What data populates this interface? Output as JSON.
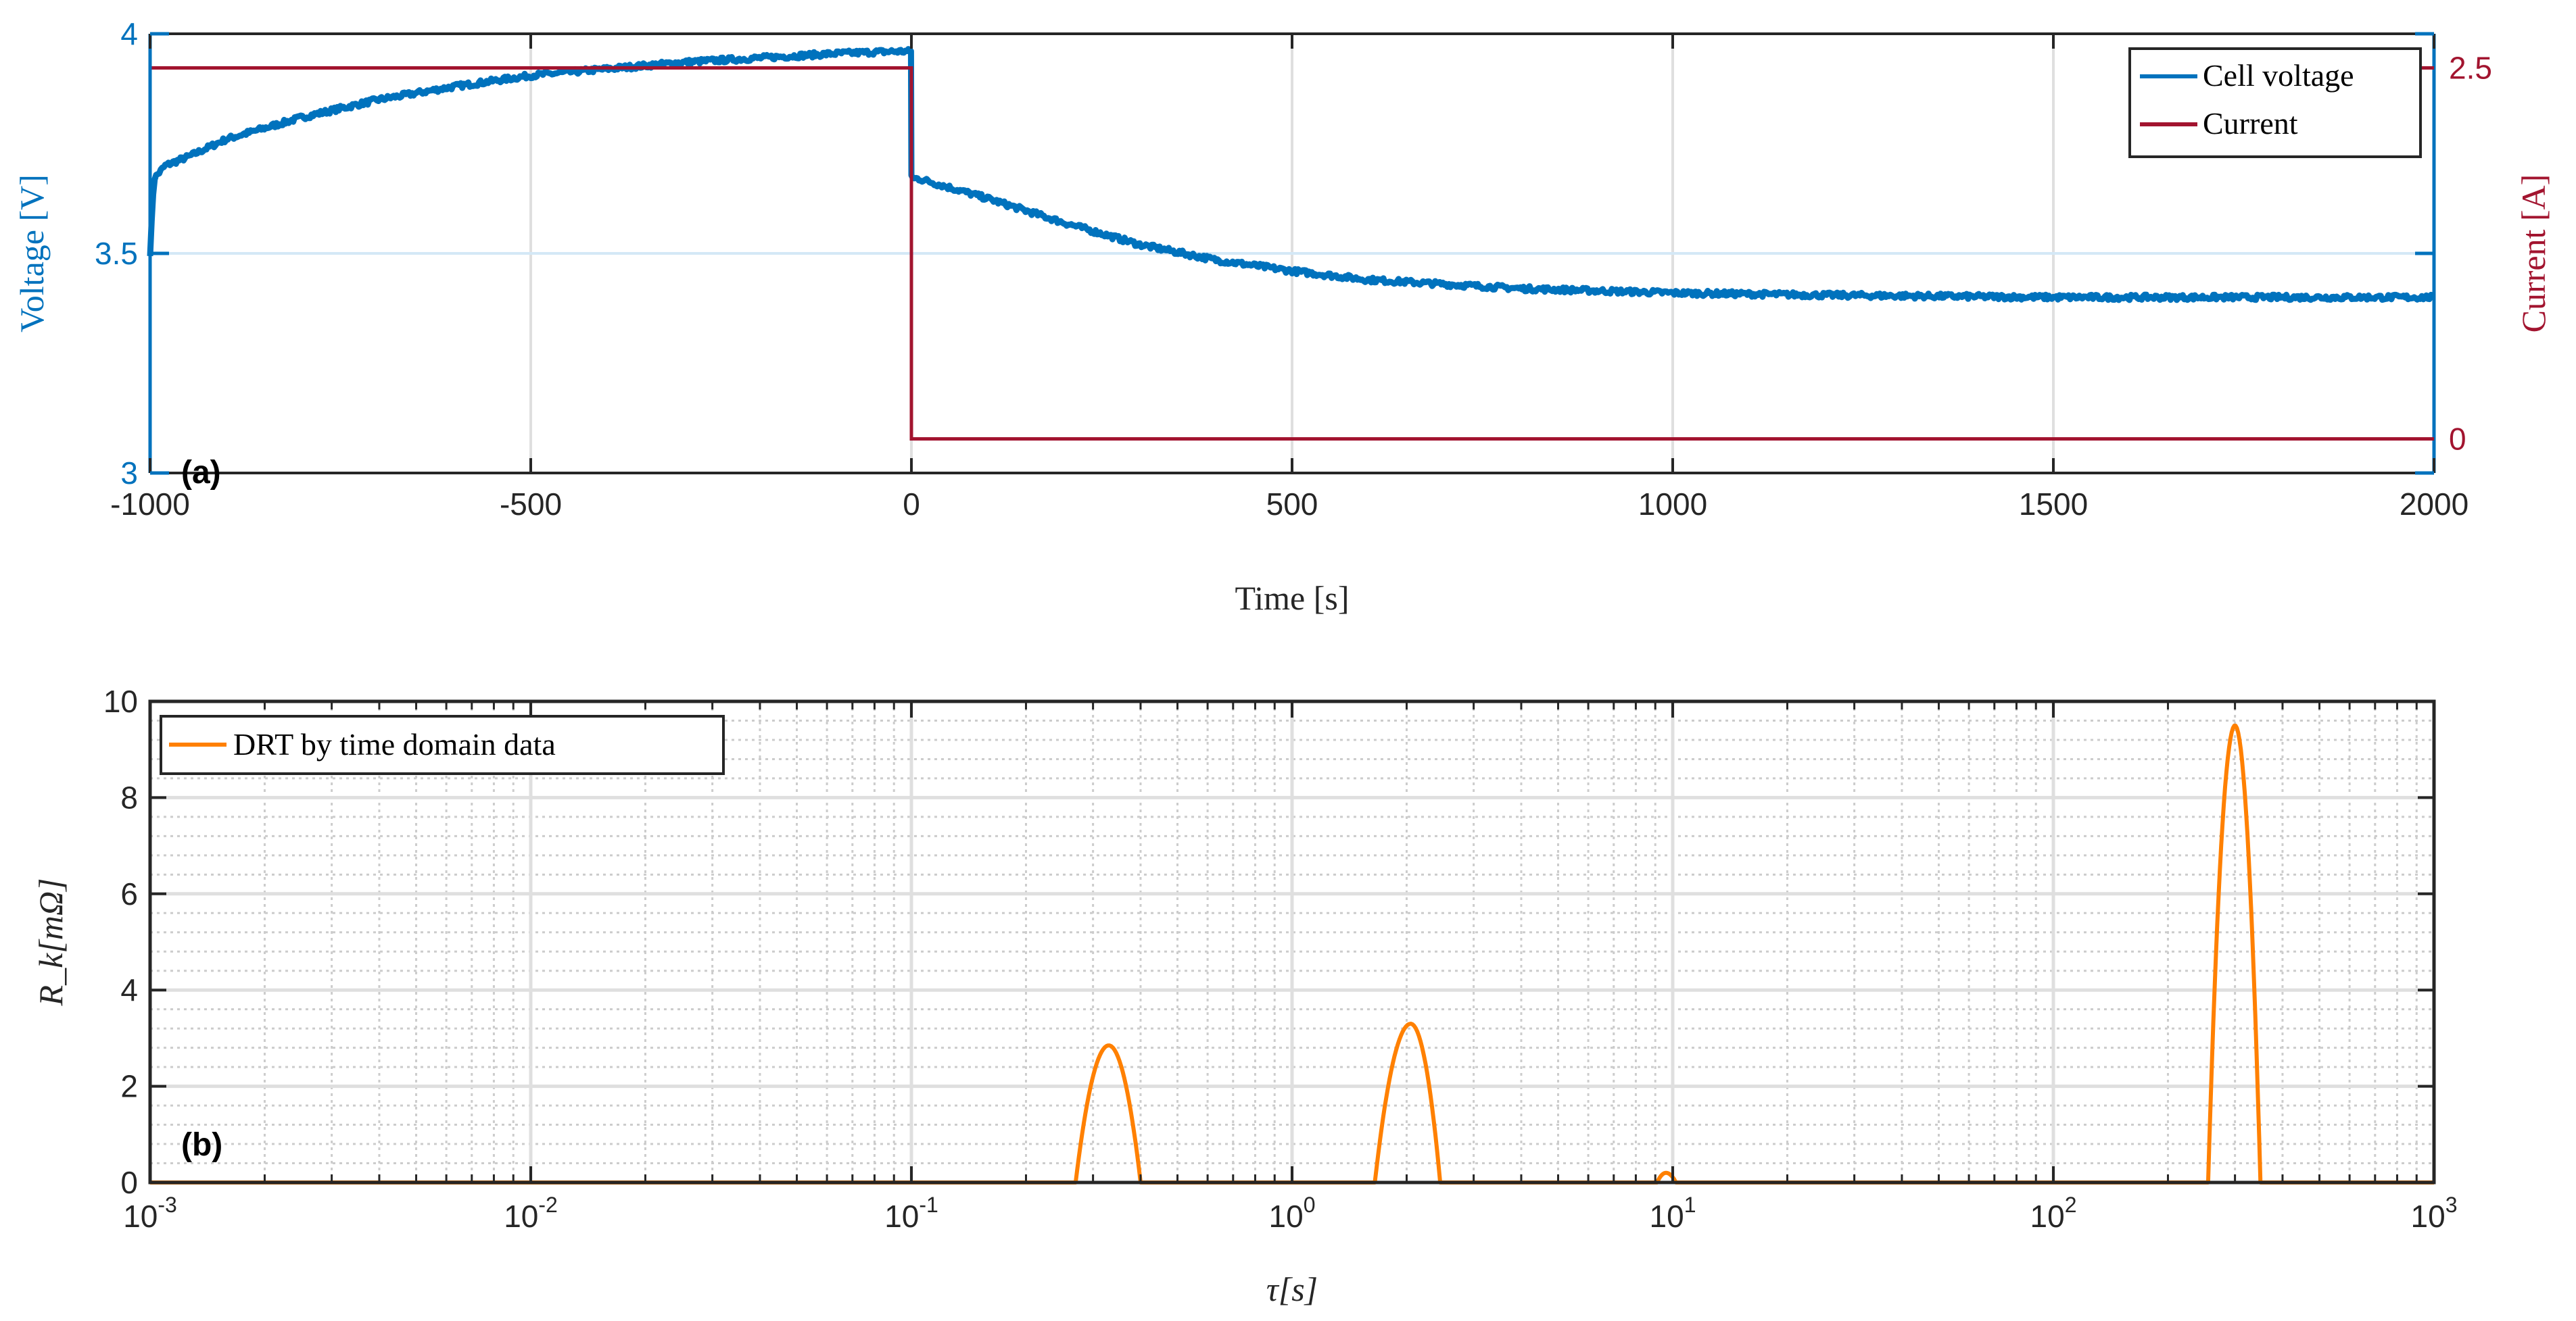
{
  "chart_data": [
    {
      "panel": "a",
      "panel_label": "(a)",
      "type": "line",
      "xlabel": "Time [s]",
      "ylabel_left": "Voltage [V]",
      "ylabel_right": "Current [A]",
      "xlim": [
        -1000,
        2000
      ],
      "ylim_left": [
        3,
        4
      ],
      "ylim_right": [
        -0.23,
        2.73
      ],
      "xticks": [
        -1000,
        -500,
        0,
        500,
        1000,
        1500,
        2000
      ],
      "xtick_labels": [
        "-1000",
        "-500",
        "0",
        "500",
        "1000",
        "1500",
        "2000"
      ],
      "yticks_left": [
        3,
        3.5,
        4
      ],
      "ytick_labels_left": [
        "3",
        "3.5",
        "4"
      ],
      "yticks_right": [
        0,
        2.5
      ],
      "ytick_labels_right": [
        "0",
        "2.5"
      ],
      "grid": true,
      "legend_position": "top-right",
      "series": [
        {
          "name": "Cell voltage",
          "axis": "left",
          "color": "#0072BD",
          "noisy": true,
          "x": [
            -1000,
            -995,
            -980,
            -950,
            -900,
            -800,
            -700,
            -600,
            -500,
            -400,
            -300,
            -200,
            -100,
            -20,
            -1,
            0,
            2,
            10,
            50,
            100,
            200,
            300,
            400,
            500,
            600,
            700,
            800,
            1000,
            1200,
            1500,
            1800,
            2000
          ],
          "y": [
            3.5,
            3.67,
            3.7,
            3.72,
            3.76,
            3.81,
            3.85,
            3.88,
            3.905,
            3.92,
            3.935,
            3.945,
            3.955,
            3.96,
            3.96,
            3.68,
            3.67,
            3.67,
            3.65,
            3.625,
            3.57,
            3.52,
            3.485,
            3.46,
            3.44,
            3.43,
            3.42,
            3.41,
            3.405,
            3.4,
            3.4,
            3.4
          ]
        },
        {
          "name": "Current",
          "axis": "right",
          "color": "#A2142F",
          "noisy": false,
          "x": [
            -1000,
            0,
            0,
            2000
          ],
          "y": [
            2.5,
            2.5,
            0,
            0
          ]
        }
      ]
    },
    {
      "panel": "b",
      "panel_label": "(b)",
      "type": "line",
      "xlabel": "τ[s]",
      "ylabel": "R_k[mΩ]",
      "xscale": "log",
      "xlim": [
        0.001,
        1000
      ],
      "ylim": [
        0,
        10
      ],
      "xtick_mantissa": "10",
      "xtick_exponents": [
        "-3",
        "-2",
        "-1",
        "0",
        "1",
        "2",
        "3"
      ],
      "yticks": [
        0,
        2,
        4,
        6,
        8,
        10
      ],
      "ytick_labels": [
        "0",
        "2",
        "4",
        "6",
        "8",
        "10"
      ],
      "grid": true,
      "minor_grid": true,
      "legend_position": "top-left",
      "series": [
        {
          "name": "DRT by time domain data",
          "color": "#FF8000",
          "peaks": [
            {
              "tau_center": 0.33,
              "tau_from": 0.27,
              "tau_to": 0.4,
              "value": 2.85
            },
            {
              "tau_center": 2.05,
              "tau_from": 1.65,
              "tau_to": 2.45,
              "value": 3.3
            },
            {
              "tau_center": 9.6,
              "tau_from": 9.1,
              "tau_to": 10.2,
              "value": 0.2
            },
            {
              "tau_center": 300,
              "tau_from": 255,
              "tau_to": 350,
              "value": 9.5
            }
          ]
        }
      ]
    }
  ]
}
